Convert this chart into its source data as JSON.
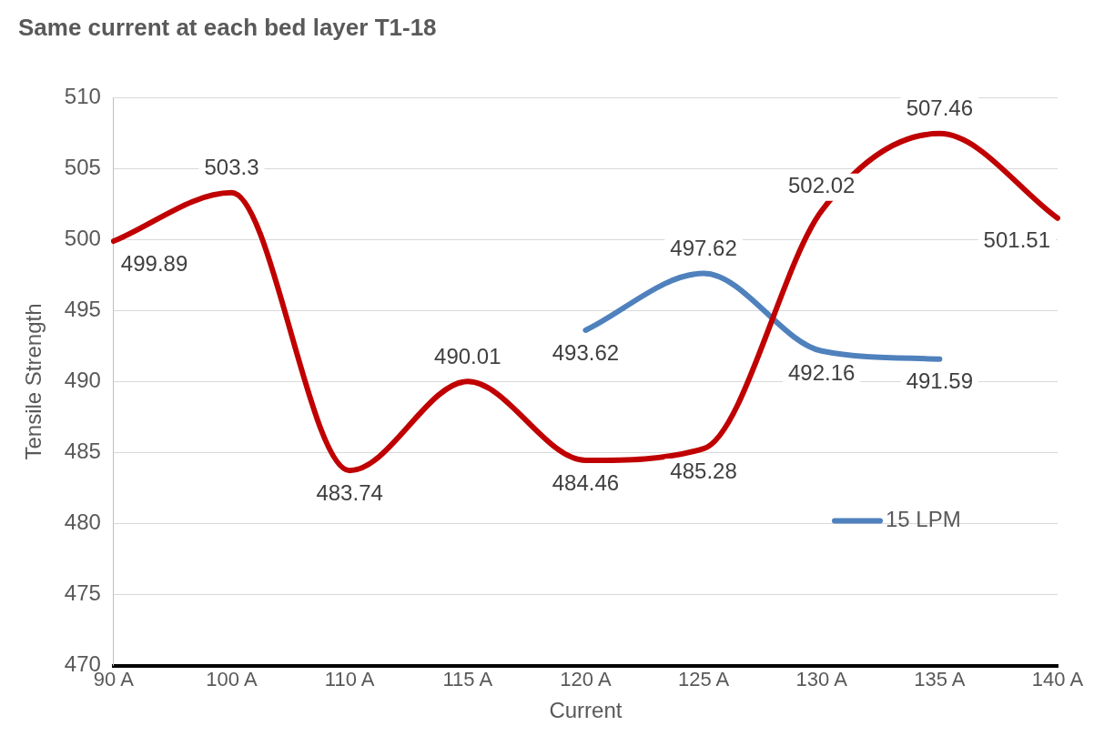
{
  "chart_data": {
    "type": "line",
    "title": "Same current at each bed layer T1-18",
    "xlabel": "Current",
    "ylabel": "Tensile Strength",
    "categories": [
      "90 A",
      "100 A",
      "110 A",
      "115 A",
      "120 A",
      "125 A",
      "130 A",
      "135 A",
      "140 A"
    ],
    "series": [
      {
        "color": "#c00000",
        "values": [
          499.89,
          503.3,
          483.74,
          490.01,
          484.46,
          485.28,
          502.02,
          507.46,
          501.51
        ]
      },
      {
        "name": "15 LPM",
        "color": "#4f81bd",
        "values": [
          null,
          null,
          null,
          null,
          493.62,
          497.62,
          492.16,
          491.59,
          null
        ]
      }
    ],
    "ylim": [
      470,
      510
    ],
    "yticks": [
      470,
      475,
      480,
      485,
      490,
      495,
      500,
      505,
      510
    ],
    "grid": "y",
    "legend": "right",
    "data_labels": true
  }
}
